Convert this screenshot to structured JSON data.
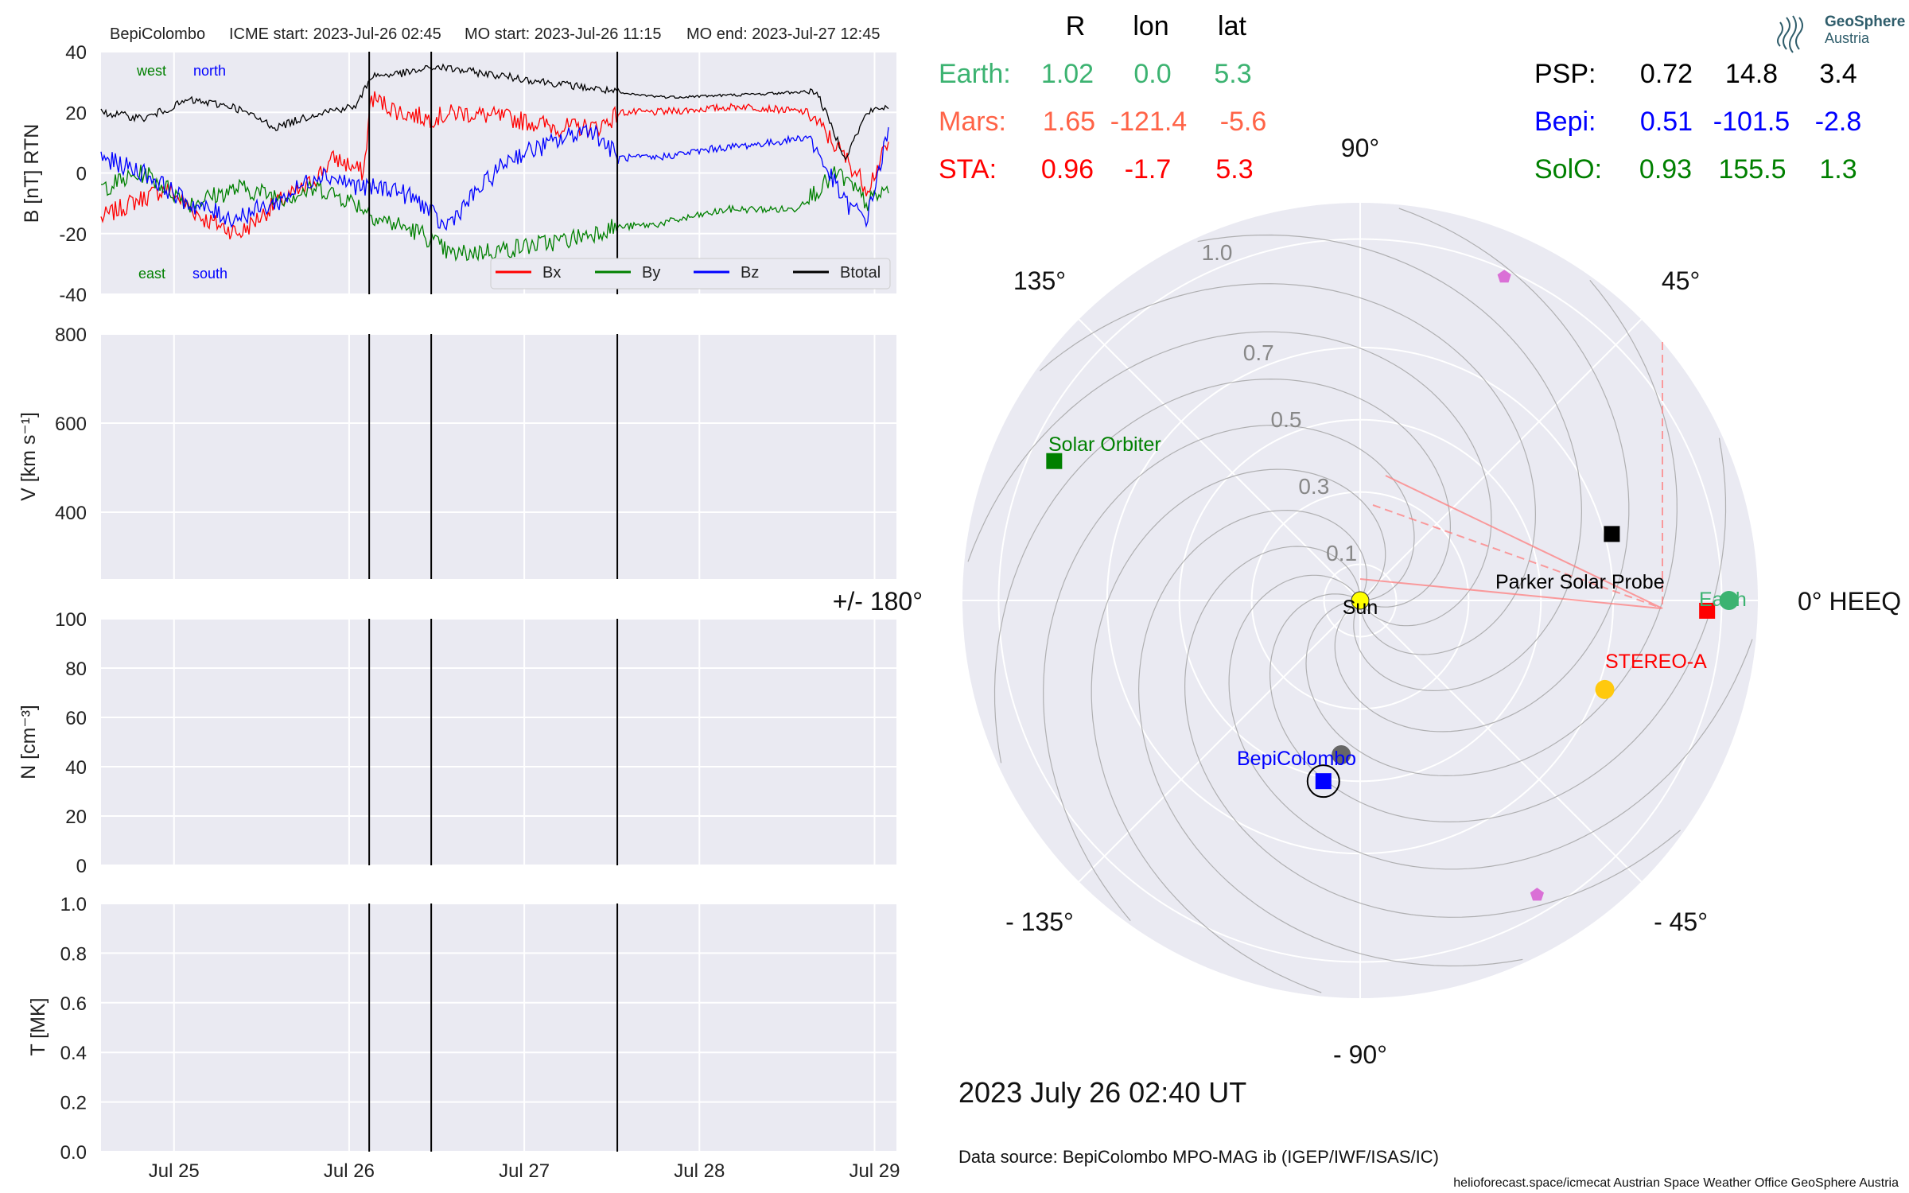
{
  "header": {
    "spacecraft": "BepiColombo",
    "icme_start": "ICME start: 2023-Jul-26 02:45",
    "mo_start": "MO start: 2023-Jul-26 11:15",
    "mo_end": "MO end: 2023-Jul-27 12:45"
  },
  "logo": {
    "line1": "GeoSphere",
    "line2": "Austria"
  },
  "positions_table": {
    "col_headers": [
      "R",
      "lon",
      "lat"
    ],
    "left_rows": [
      {
        "label": "Earth:",
        "r": "1.02",
        "lon": "0.0",
        "lat": "5.3",
        "color": "#3cb371"
      },
      {
        "label": "Mars:",
        "r": "1.65",
        "lon": "-121.4",
        "lat": "-5.6",
        "color": "#ff6347"
      },
      {
        "label": "STA:",
        "r": "0.96",
        "lon": "-1.7",
        "lat": "5.3",
        "color": "#ff0000"
      }
    ],
    "right_rows": [
      {
        "label": "PSP:",
        "r": "0.72",
        "lon": "14.8",
        "lat": "3.4",
        "color": "#000000"
      },
      {
        "label": "Bepi:",
        "r": "0.51",
        "lon": "-101.5",
        "lat": "-2.8",
        "color": "#0000ff"
      },
      {
        "label": "SolO:",
        "r": "0.93",
        "lon": "155.5",
        "lat": "1.3",
        "color": "#008000"
      }
    ]
  },
  "date_text": "2023 July 26  02:40 UT",
  "data_source": "Data source: BepiColombo MPO-MAG ib (IGEP/IWF/ISAS/IC)",
  "footer": "helioforecast.space/icmecat   Austrian Space Weather Office   GeoSphere Austria",
  "chart_data": [
    {
      "type": "line",
      "panel": "magnetic-field",
      "ylabel": "B [nT] RTN",
      "ylim": [
        -40,
        40
      ],
      "yticks": [
        40,
        20,
        0,
        -20,
        -40
      ],
      "xlim_days": [
        "2023-07-24 14:00",
        "2023-07-29 03:00"
      ],
      "xticks": [
        "Jul 25",
        "Jul 26",
        "Jul 27",
        "Jul 28",
        "Jul 29"
      ],
      "event_lines": [
        "2023-07-26 02:45",
        "2023-07-26 11:15",
        "2023-07-27 12:45"
      ],
      "corner_labels": {
        "top": [
          "west",
          "north"
        ],
        "bottom": [
          "east",
          "south"
        ]
      },
      "legend_position": "lower-right",
      "series": [
        {
          "name": "Bx",
          "color": "#ff0000",
          "points": [
            [
              "2023-07-24 14:00",
              -15
            ],
            [
              "2023-07-24 18:00",
              -10
            ],
            [
              "2023-07-24 23:00",
              -5
            ],
            [
              "2023-07-25 04:00",
              -15
            ],
            [
              "2023-07-25 09:00",
              -20
            ],
            [
              "2023-07-25 14:00",
              -10
            ],
            [
              "2023-07-25 18:00",
              -5
            ],
            [
              "2023-07-25 22:00",
              5
            ],
            [
              "2023-07-26 02:00",
              0
            ],
            [
              "2023-07-26 03:00",
              25
            ],
            [
              "2023-07-26 07:00",
              20
            ],
            [
              "2023-07-26 11:00",
              18
            ],
            [
              "2023-07-26 15:00",
              20
            ],
            [
              "2023-07-26 22:00",
              18
            ],
            [
              "2023-07-27 05:00",
              15
            ],
            [
              "2023-07-27 10:00",
              15
            ],
            [
              "2023-07-27 12:00",
              18
            ],
            [
              "2023-07-27 13:00",
              20
            ],
            [
              "2023-07-27 18:00",
              20
            ],
            [
              "2023-07-28 06:00",
              22
            ],
            [
              "2023-07-28 15:00",
              20
            ],
            [
              "2023-07-28 20:00",
              5
            ],
            [
              "2023-07-28 23:00",
              -5
            ],
            [
              "2023-07-29 02:00",
              10
            ]
          ]
        },
        {
          "name": "By",
          "color": "#008000",
          "points": [
            [
              "2023-07-24 14:00",
              -5
            ],
            [
              "2023-07-24 20:00",
              0
            ],
            [
              "2023-07-25 02:00",
              -10
            ],
            [
              "2023-07-25 09:00",
              -5
            ],
            [
              "2023-07-25 15:00",
              -8
            ],
            [
              "2023-07-25 20:00",
              -5
            ],
            [
              "2023-07-26 01:00",
              -10
            ],
            [
              "2023-07-26 04:00",
              -15
            ],
            [
              "2023-07-26 10:00",
              -20
            ],
            [
              "2023-07-26 14:00",
              -27
            ],
            [
              "2023-07-26 22:00",
              -25
            ],
            [
              "2023-07-27 06:00",
              -22
            ],
            [
              "2023-07-27 12:00",
              -18
            ],
            [
              "2023-07-27 18:00",
              -17
            ],
            [
              "2023-07-28 04:00",
              -12
            ],
            [
              "2023-07-28 13:00",
              -12
            ],
            [
              "2023-07-28 19:00",
              0
            ],
            [
              "2023-07-28 23:00",
              -10
            ],
            [
              "2023-07-29 02:00",
              -5
            ]
          ]
        },
        {
          "name": "Bz",
          "color": "#0000ff",
          "points": [
            [
              "2023-07-24 14:00",
              5
            ],
            [
              "2023-07-24 20:00",
              0
            ],
            [
              "2023-07-25 02:00",
              -10
            ],
            [
              "2023-07-25 08:00",
              -15
            ],
            [
              "2023-07-25 14:00",
              -10
            ],
            [
              "2023-07-25 20:00",
              0
            ],
            [
              "2023-07-26 02:00",
              -5
            ],
            [
              "2023-07-26 06:00",
              -5
            ],
            [
              "2023-07-26 10:00",
              -10
            ],
            [
              "2023-07-26 13:00",
              -18
            ],
            [
              "2023-07-26 18:00",
              -5
            ],
            [
              "2023-07-26 22:00",
              5
            ],
            [
              "2023-07-27 04:00",
              10
            ],
            [
              "2023-07-27 09:00",
              15
            ],
            [
              "2023-07-27 13:00",
              5
            ],
            [
              "2023-07-27 18:00",
              5
            ],
            [
              "2023-07-28 02:00",
              8
            ],
            [
              "2023-07-28 10:00",
              10
            ],
            [
              "2023-07-28 15:00",
              12
            ],
            [
              "2023-07-28 20:00",
              -10
            ],
            [
              "2023-07-28 23:00",
              -15
            ],
            [
              "2023-07-29 02:00",
              15
            ]
          ]
        },
        {
          "name": "Btotal",
          "color": "#000000",
          "points": [
            [
              "2023-07-24 14:00",
              20
            ],
            [
              "2023-07-24 20:00",
              18
            ],
            [
              "2023-07-25 02:00",
              24
            ],
            [
              "2023-07-25 08:00",
              22
            ],
            [
              "2023-07-25 14:00",
              15
            ],
            [
              "2023-07-25 20:00",
              20
            ],
            [
              "2023-07-26 01:00",
              22
            ],
            [
              "2023-07-26 03:00",
              32
            ],
            [
              "2023-07-26 08:00",
              33
            ],
            [
              "2023-07-26 12:00",
              35
            ],
            [
              "2023-07-26 18:00",
              33
            ],
            [
              "2023-07-27 00:00",
              31
            ],
            [
              "2023-07-27 06:00",
              29
            ],
            [
              "2023-07-27 12:00",
              27
            ],
            [
              "2023-07-27 14:00",
              26
            ],
            [
              "2023-07-27 20:00",
              25
            ],
            [
              "2023-07-28 08:00",
              26
            ],
            [
              "2023-07-28 16:00",
              27
            ],
            [
              "2023-07-28 20:00",
              5
            ],
            [
              "2023-07-28 23:00",
              20
            ],
            [
              "2023-07-29 02:00",
              22
            ]
          ]
        }
      ]
    },
    {
      "type": "line",
      "panel": "speed",
      "ylabel": "V [km s⁻¹]",
      "ylim": [
        250,
        800
      ],
      "yticks": [
        "800",
        "600",
        "400"
      ],
      "series": []
    },
    {
      "type": "line",
      "panel": "density",
      "ylabel": "N [cm⁻³]",
      "ylim": [
        0,
        100
      ],
      "yticks": [
        "100",
        "80",
        "60",
        "40",
        "20",
        "0"
      ],
      "series": []
    },
    {
      "type": "line",
      "panel": "temperature",
      "ylabel": "T [MK]",
      "ylim": [
        0,
        1
      ],
      "yticks": [
        "1.0",
        "0.8",
        "0.6",
        "0.4",
        "0.2",
        "0.0"
      ],
      "series": []
    },
    {
      "type": "scatter",
      "panel": "polar-heliosphere",
      "projection": "polar",
      "rmax": 1.1,
      "radial_tick_values": [
        0.1,
        0.3,
        0.5,
        0.7,
        1.0
      ],
      "radial_tick_labels": [
        "0.1",
        "0.3",
        "0.5",
        "0.7",
        "1.0"
      ],
      "angle_labels": [
        {
          "deg": 0,
          "text": "0° HEEQ"
        },
        {
          "deg": 45,
          "text": "45°"
        },
        {
          "deg": 90,
          "text": "90°"
        },
        {
          "deg": 135,
          "text": "135°"
        },
        {
          "deg": 180,
          "text": "+/- 180°"
        },
        {
          "deg": -135,
          "text": "- 135°"
        },
        {
          "deg": -90,
          "text": "- 90°"
        },
        {
          "deg": -45,
          "text": "- 45°"
        }
      ],
      "bodies": [
        {
          "name": "Sun",
          "label": "Sun",
          "r": 0.0,
          "lon": 0.0,
          "color": "#ffff00",
          "marker": "circle"
        },
        {
          "name": "Earth",
          "label": "Earth",
          "r": 1.02,
          "lon": 0.0,
          "color": "#3cb371",
          "marker": "circle"
        },
        {
          "name": "STEREO-A",
          "label": "STEREO-A",
          "r": 0.96,
          "lon": -1.7,
          "color": "#ff0000",
          "marker": "square"
        },
        {
          "name": "Parker Solar Probe",
          "label": "Parker Solar Probe",
          "r": 0.72,
          "lon": 14.8,
          "color": "#000000",
          "marker": "square"
        },
        {
          "name": "BepiColombo",
          "label": "BepiColombo",
          "r": 0.51,
          "lon": -101.5,
          "color": "#0000ff",
          "marker": "square"
        },
        {
          "name": "Solar Orbiter",
          "label": "Solar Orbiter",
          "r": 0.93,
          "lon": 155.5,
          "color": "#008000",
          "marker": "square"
        },
        {
          "name": "Mercury",
          "label": "",
          "r": 0.43,
          "lon": -97,
          "color": "#666666",
          "marker": "circle"
        },
        {
          "name": "Venus",
          "label": "",
          "r": 0.72,
          "lon": -20,
          "color": "#ffc90e",
          "marker": "circle"
        },
        {
          "name": "Comet-1",
          "label": "",
          "r": 0.98,
          "lon": 66,
          "color": "#da70d6",
          "marker": "pentagon"
        },
        {
          "name": "Comet-2",
          "label": "",
          "r": 0.95,
          "lon": -59,
          "color": "#da70d6",
          "marker": "pentagon"
        }
      ]
    }
  ]
}
